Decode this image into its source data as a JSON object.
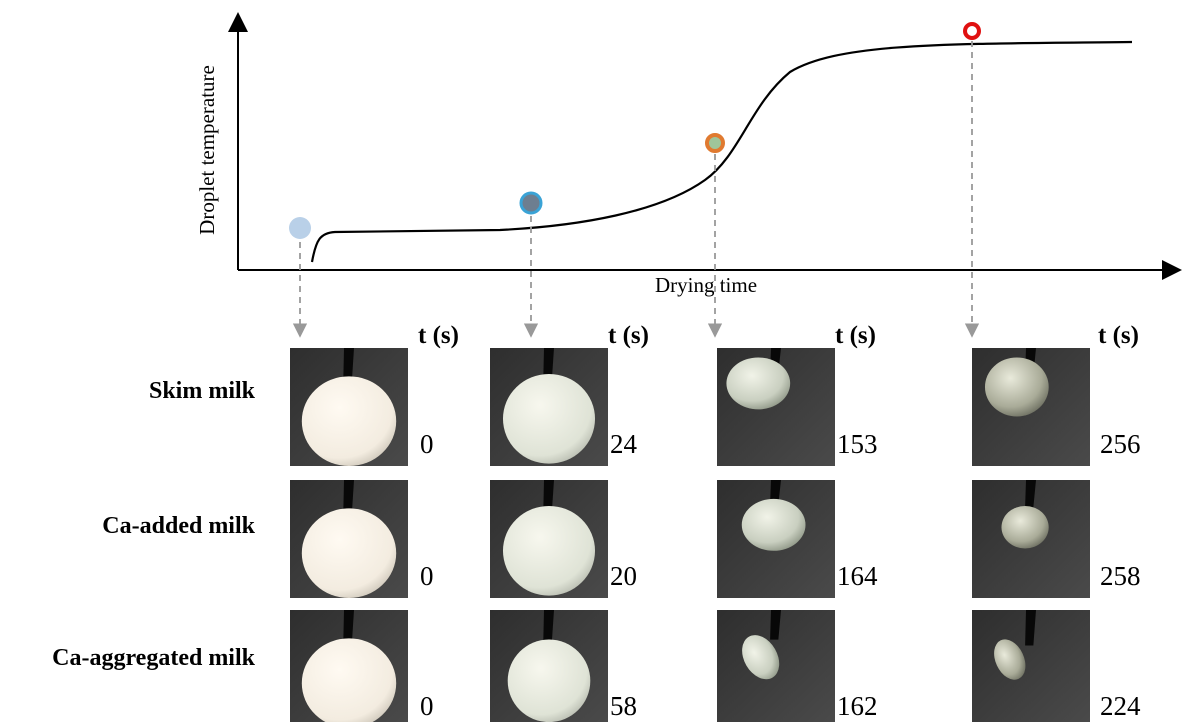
{
  "curve": {
    "y_label": "Droplet temperature",
    "x_label": "Drying time"
  },
  "columns": [
    {
      "header": "t (s)"
    },
    {
      "header": "t (s)"
    },
    {
      "header": "t (s)"
    },
    {
      "header": "t (s)"
    }
  ],
  "rows": [
    {
      "label": "Skim milk",
      "times": [
        0,
        24,
        153,
        256
      ]
    },
    {
      "label": "Ca-added milk",
      "times": [
        0,
        20,
        164,
        258
      ]
    },
    {
      "label": "Ca-aggregated milk",
      "times": [
        0,
        58,
        162,
        224
      ]
    }
  ]
}
